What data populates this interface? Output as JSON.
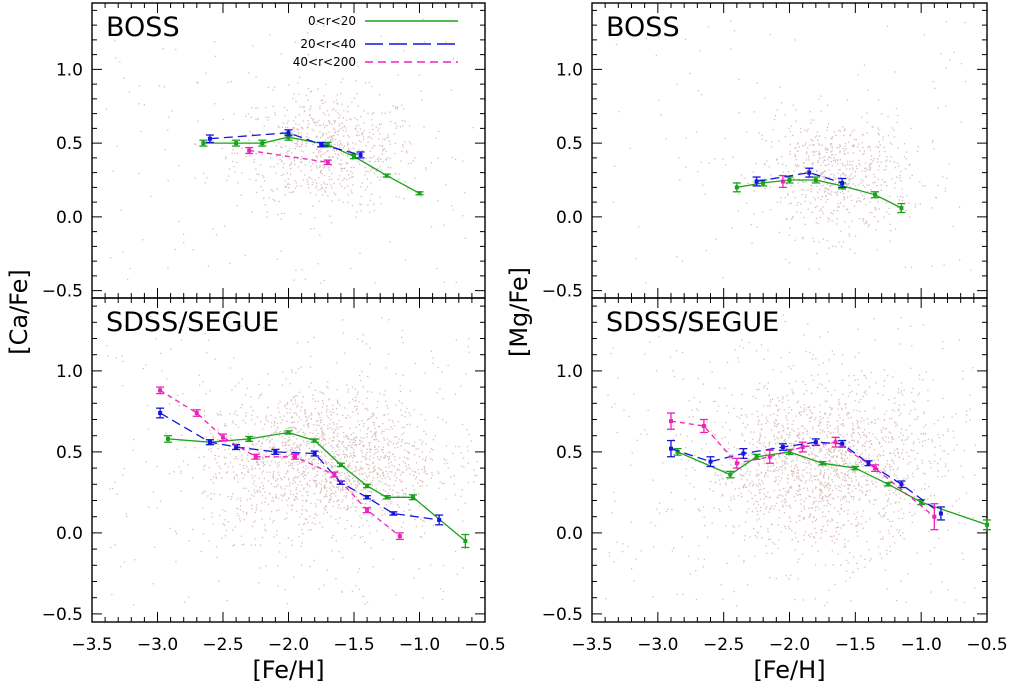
{
  "colors": {
    "g1": "#1aa31a",
    "g2": "#1515dd",
    "g3": "#ee22bb",
    "background": "#d9bcbc"
  },
  "chart_data": {
    "type": "scatter",
    "xlabel": "[Fe/H]",
    "xlim": [
      -3.5,
      -0.5
    ],
    "x_ticks": [
      "−3.5",
      "−3.0",
      "−2.5",
      "−2.0",
      "−1.5",
      "−1.0",
      "−0.5"
    ],
    "ylim": [
      -0.55,
      1.45
    ],
    "y_ticks": [
      "−0.5",
      "0.0",
      "0.5",
      "1.0"
    ],
    "legend": {
      "position": "top-right",
      "entries": [
        "0<r<20",
        "20<r<40",
        "40<r<200"
      ]
    },
    "ylabels": {
      "left": "[Ca/Fe]",
      "right": "[Mg/Fe]"
    },
    "panels": [
      {
        "title": "BOSS",
        "ylabel": "[Ca/Fe]",
        "series": [
          {
            "name": "0<r<20",
            "x": [
              -2.65,
              -2.4,
              -2.2,
              -2.0,
              -1.7,
              -1.5,
              -1.25,
              -1.0
            ],
            "y": [
              0.5,
              0.5,
              0.5,
              0.54,
              0.49,
              0.41,
              0.28,
              0.16
            ],
            "err": [
              0.02,
              0.02,
              0.02,
              0.02,
              0.015,
              0.015,
              0.01,
              0.01
            ]
          },
          {
            "name": "20<r<40",
            "x": [
              -2.6,
              -2.0,
              -1.75,
              -1.45
            ],
            "y": [
              0.53,
              0.57,
              0.49,
              0.42
            ],
            "err": [
              0.025,
              0.02,
              0.015,
              0.02
            ]
          },
          {
            "name": "40<r<200",
            "x": [
              -2.3,
              -1.7
            ],
            "y": [
              0.45,
              0.37
            ],
            "err": [
              0.02,
              0.015
            ]
          }
        ]
      },
      {
        "title": "BOSS",
        "ylabel": "[Mg/Fe]",
        "series": [
          {
            "name": "0<r<20",
            "x": [
              -2.4,
              -2.2,
              -2.0,
              -1.8,
              -1.6,
              -1.35,
              -1.15
            ],
            "y": [
              0.2,
              0.23,
              0.25,
              0.25,
              0.21,
              0.15,
              0.06
            ],
            "err": [
              0.03,
              0.02,
              0.02,
              0.02,
              0.02,
              0.02,
              0.03
            ]
          },
          {
            "name": "20<r<40",
            "x": [
              -2.25,
              -1.85,
              -1.6
            ],
            "y": [
              0.24,
              0.3,
              0.23
            ],
            "err": [
              0.03,
              0.03,
              0.03
            ]
          },
          {
            "name": "40<r<200",
            "x": [
              -2.05
            ],
            "y": [
              0.24
            ],
            "err": [
              0.04
            ]
          }
        ]
      },
      {
        "title": "SDSS/SEGUE",
        "ylabel": "[Ca/Fe]",
        "series": [
          {
            "name": "0<r<20",
            "x": [
              -2.92,
              -2.6,
              -2.3,
              -2.0,
              -1.8,
              -1.6,
              -1.4,
              -1.25,
              -1.05,
              -0.65
            ],
            "y": [
              0.58,
              0.56,
              0.58,
              0.62,
              0.57,
              0.42,
              0.29,
              0.22,
              0.22,
              -0.05
            ],
            "err": [
              0.02,
              0.015,
              0.015,
              0.01,
              0.01,
              0.01,
              0.01,
              0.01,
              0.015,
              0.04
            ]
          },
          {
            "name": "20<r<40",
            "x": [
              -2.98,
              -2.6,
              -2.4,
              -2.1,
              -1.8,
              -1.6,
              -1.4,
              -1.2,
              -0.85
            ],
            "y": [
              0.74,
              0.56,
              0.53,
              0.5,
              0.49,
              0.31,
              0.22,
              0.12,
              0.08
            ],
            "err": [
              0.03,
              0.015,
              0.015,
              0.015,
              0.015,
              0.01,
              0.01,
              0.01,
              0.03
            ]
          },
          {
            "name": "40<r<200",
            "x": [
              -2.98,
              -2.7,
              -2.5,
              -2.25,
              -1.95,
              -1.65,
              -1.4,
              -1.15
            ],
            "y": [
              0.88,
              0.74,
              0.59,
              0.47,
              0.47,
              0.36,
              0.14,
              -0.02
            ],
            "err": [
              0.02,
              0.02,
              0.02,
              0.015,
              0.015,
              0.015,
              0.015,
              0.02
            ]
          }
        ]
      },
      {
        "title": "SDSS/SEGUE",
        "ylabel": "[Mg/Fe]",
        "series": [
          {
            "name": "0<r<20",
            "x": [
              -2.85,
              -2.45,
              -2.25,
              -2.0,
              -1.75,
              -1.5,
              -1.25,
              -1.0,
              -0.5
            ],
            "y": [
              0.5,
              0.36,
              0.47,
              0.5,
              0.43,
              0.4,
              0.3,
              0.19,
              0.05
            ],
            "err": [
              0.02,
              0.02,
              0.015,
              0.015,
              0.01,
              0.01,
              0.01,
              0.015,
              0.03
            ]
          },
          {
            "name": "20<r<40",
            "x": [
              -2.9,
              -2.6,
              -2.35,
              -2.05,
              -1.8,
              -1.6,
              -1.4,
              -1.15,
              -0.85
            ],
            "y": [
              0.52,
              0.44,
              0.49,
              0.53,
              0.56,
              0.55,
              0.43,
              0.3,
              0.12
            ],
            "err": [
              0.05,
              0.03,
              0.03,
              0.02,
              0.02,
              0.02,
              0.015,
              0.02,
              0.04
            ]
          },
          {
            "name": "40<r<200",
            "x": [
              -2.9,
              -2.65,
              -2.4,
              -2.15,
              -1.9,
              -1.65,
              -1.35,
              -0.9
            ],
            "y": [
              0.69,
              0.66,
              0.43,
              0.47,
              0.53,
              0.56,
              0.4,
              0.1
            ],
            "err": [
              0.05,
              0.04,
              0.03,
              0.04,
              0.03,
              0.03,
              0.02,
              0.08
            ]
          }
        ]
      }
    ]
  }
}
